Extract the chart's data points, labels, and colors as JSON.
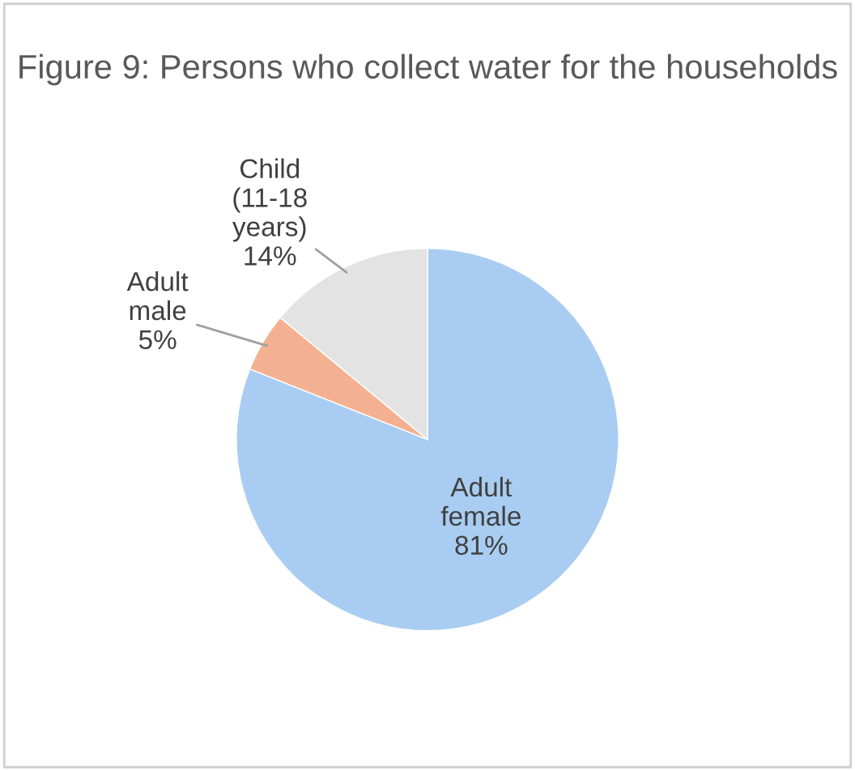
{
  "chart_data": {
    "type": "pie",
    "title": "Figure 9: Persons who collect water for the households",
    "categories": [
      "Adult female",
      "Adult male",
      "Child (11-18 years)"
    ],
    "values": [
      81,
      5,
      14
    ],
    "colors": [
      "#a9cdf2",
      "#f4b191",
      "#e3e3e3"
    ],
    "value_labels": [
      "81%",
      "5%",
      "14%"
    ],
    "legend": false
  }
}
